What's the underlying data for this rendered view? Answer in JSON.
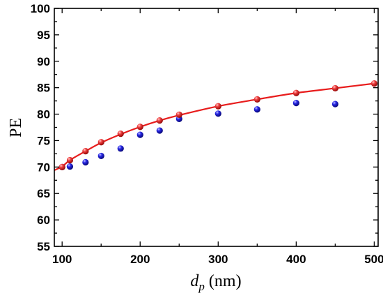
{
  "chart_data": {
    "type": "scatter",
    "xlabel_var": "d",
    "xlabel_sub": "p",
    "xlabel_unit": " (nm)",
    "ylabel": "PE",
    "xlim": [
      90,
      505
    ],
    "ylim": [
      55,
      100
    ],
    "x_ticks": [
      100,
      200,
      300,
      400,
      500
    ],
    "y_ticks": [
      55,
      60,
      65,
      70,
      75,
      80,
      85,
      90,
      95,
      100
    ],
    "grid": false,
    "series": [
      {
        "color": "#e81c1c",
        "marker": "sphere",
        "x": [
          100,
          110,
          130,
          150,
          175,
          200,
          225,
          250,
          300,
          350,
          400,
          450,
          500
        ],
        "y": [
          70.0,
          71.3,
          73.0,
          74.7,
          76.3,
          77.6,
          78.8,
          79.9,
          81.5,
          82.8,
          84.0,
          84.9,
          85.8
        ]
      },
      {
        "color": "#1a1ad8",
        "marker": "sphere",
        "x": [
          100,
          110,
          130,
          150,
          175,
          200,
          225,
          250,
          300,
          350,
          400,
          450
        ],
        "y": [
          70.0,
          70.1,
          70.9,
          72.1,
          73.5,
          76.1,
          76.9,
          79.1,
          80.1,
          80.9,
          82.1,
          81.9
        ]
      }
    ],
    "fit_curve": {
      "color": "#e81c1c",
      "x": [
        90,
        100,
        110,
        130,
        150,
        175,
        200,
        225,
        250,
        300,
        350,
        400,
        450,
        500
      ],
      "y": [
        69.4,
        70.1,
        71.3,
        73.0,
        74.6,
        76.2,
        77.6,
        78.8,
        79.8,
        81.5,
        82.8,
        84.0,
        84.9,
        85.8
      ]
    }
  }
}
